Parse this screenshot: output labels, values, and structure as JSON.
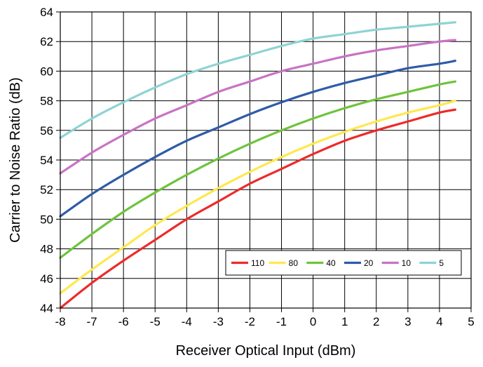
{
  "chart_data": {
    "type": "line",
    "title": "",
    "xlabel": "Receiver Optical Input (dBm)",
    "ylabel": "Carrier to Noise Ratio (dB)",
    "xlim": [
      -8,
      5
    ],
    "ylim": [
      44,
      64
    ],
    "x_ticks": [
      "-8",
      "-7",
      "-6",
      "-5",
      "-4",
      "-3",
      "-2",
      "-1",
      "0",
      "1",
      "2",
      "3",
      "4",
      "5"
    ],
    "y_ticks": [
      "44",
      "46",
      "48",
      "50",
      "52",
      "54",
      "56",
      "58",
      "60",
      "62",
      "64"
    ],
    "grid": true,
    "legend_position": "bottom-right inside plot",
    "series": [
      {
        "name": "110",
        "color": "#ee2a2a",
        "x": [
          -8,
          -7,
          -6,
          -5,
          -4,
          -3,
          -2,
          -1,
          0,
          1,
          2,
          3,
          4,
          4.5
        ],
        "y": [
          44.0,
          45.7,
          47.2,
          48.6,
          50.0,
          51.2,
          52.4,
          53.4,
          54.4,
          55.3,
          56.0,
          56.6,
          57.2,
          57.4
        ]
      },
      {
        "name": "80",
        "color": "#ffe84d",
        "x": [
          -8,
          -7,
          -6,
          -5,
          -4,
          -3,
          -2,
          -1,
          0,
          1,
          2,
          3,
          4,
          4.5
        ],
        "y": [
          45.0,
          46.6,
          48.1,
          49.6,
          50.9,
          52.1,
          53.2,
          54.2,
          55.1,
          55.9,
          56.6,
          57.2,
          57.7,
          58.0
        ]
      },
      {
        "name": "40",
        "color": "#6ec43c",
        "x": [
          -8,
          -7,
          -6,
          -5,
          -4,
          -3,
          -2,
          -1,
          0,
          1,
          2,
          3,
          4,
          4.5
        ],
        "y": [
          47.4,
          49.0,
          50.5,
          51.8,
          53.0,
          54.1,
          55.1,
          56.0,
          56.8,
          57.5,
          58.1,
          58.6,
          59.1,
          59.3
        ]
      },
      {
        "name": "20",
        "color": "#2f5ba8",
        "x": [
          -8,
          -7,
          -6,
          -5,
          -4,
          -3,
          -2,
          -1,
          0,
          1,
          2,
          3,
          4,
          4.5
        ],
        "y": [
          50.2,
          51.7,
          53.0,
          54.2,
          55.3,
          56.2,
          57.1,
          57.9,
          58.6,
          59.2,
          59.7,
          60.2,
          60.5,
          60.7
        ]
      },
      {
        "name": "10",
        "color": "#c873c4",
        "x": [
          -8,
          -7,
          -6,
          -5,
          -4,
          -3,
          -2,
          -1,
          0,
          1,
          2,
          3,
          4,
          4.5
        ],
        "y": [
          53.1,
          54.5,
          55.7,
          56.8,
          57.7,
          58.6,
          59.3,
          60.0,
          60.5,
          61.0,
          61.4,
          61.7,
          62.0,
          62.1
        ]
      },
      {
        "name": "5",
        "color": "#8fd3d3",
        "x": [
          -8,
          -7,
          -6,
          -5,
          -4,
          -3,
          -2,
          -1,
          0,
          1,
          2,
          3,
          4,
          4.5
        ],
        "y": [
          55.5,
          56.8,
          57.9,
          58.9,
          59.8,
          60.5,
          61.1,
          61.7,
          62.2,
          62.5,
          62.8,
          63.0,
          63.2,
          63.3
        ]
      }
    ]
  }
}
